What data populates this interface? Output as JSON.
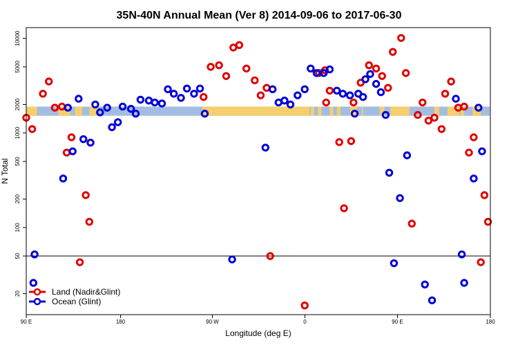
{
  "chart_data": {
    "type": "scatter",
    "title": "35N-40N Annual Mean (Ver 8)   2014-09-06 to 2017-06-30",
    "xlabel": "Longitude (deg E)",
    "ylabel": "N Total",
    "y_scale": "log",
    "ylim": [
      12,
      13000
    ],
    "x_ticks": [
      "90 E",
      "180",
      "90 W",
      "0",
      "90 E",
      "180"
    ],
    "y_ticks": [
      20,
      50,
      100,
      200,
      500,
      1000,
      2000,
      5000,
      10000
    ],
    "reference_line_y": 50,
    "grid": false,
    "legend_position": "bottom-left",
    "colors": {
      "land": "#e00000",
      "ocean": "#0000d8",
      "land_band": "#f5cf6e",
      "ocean_band": "#a3bde0"
    },
    "series": [
      {
        "name": "Land (Nadir&Glint)",
        "points": [
          [
            90,
            1450
          ],
          [
            95,
            1100
          ],
          [
            104,
            2600
          ],
          [
            109,
            3500
          ],
          [
            114,
            1850
          ],
          [
            120,
            1900
          ],
          [
            124,
            620
          ],
          [
            128,
            900
          ],
          [
            135,
            43
          ],
          [
            140,
            220
          ],
          [
            143,
            115
          ],
          [
            239,
            2400
          ],
          [
            245,
            5000
          ],
          [
            252,
            5200
          ],
          [
            258,
            4000
          ],
          [
            264,
            8000
          ],
          [
            269,
            8500
          ],
          [
            275,
            4800
          ],
          [
            282,
            3600
          ],
          [
            287,
            2500
          ],
          [
            292,
            3000
          ],
          [
            295,
            50
          ],
          [
            324,
            15
          ],
          [
            336,
            4300
          ],
          [
            341,
            4600
          ],
          [
            342,
            2100
          ],
          [
            345,
            2800
          ],
          [
            353,
            800
          ],
          [
            357,
            160
          ],
          [
            363,
            820
          ],
          [
            365,
            2100
          ],
          [
            371,
            3400
          ],
          [
            378,
            5200
          ],
          [
            384,
            4800
          ],
          [
            389,
            4000
          ],
          [
            394,
            3000
          ],
          [
            398,
            7200
          ],
          [
            405,
            10100
          ],
          [
            409,
            4300
          ],
          [
            414,
            110
          ],
          [
            419,
            1550
          ],
          [
            423,
            2100
          ],
          [
            428,
            1350
          ],
          [
            433,
            1450
          ],
          [
            439,
            1100
          ],
          [
            442,
            2600
          ],
          [
            447,
            3500
          ],
          [
            453,
            1850
          ],
          [
            458,
            1900
          ],
          [
            462,
            620
          ],
          [
            466,
            900
          ],
          [
            472,
            43
          ],
          [
            475,
            220
          ],
          [
            478,
            115
          ]
        ]
      },
      {
        "name": "Ocean (Glint)",
        "points": [
          [
            96,
            26
          ],
          [
            97,
            52
          ],
          [
            121,
            330
          ],
          [
            125,
            1850
          ],
          [
            129,
            640
          ],
          [
            134,
            2300
          ],
          [
            138,
            860
          ],
          [
            144,
            790
          ],
          [
            148,
            2000
          ],
          [
            152,
            1650
          ],
          [
            158,
            1850
          ],
          [
            162,
            1150
          ],
          [
            167,
            1300
          ],
          [
            171,
            1900
          ],
          [
            178,
            1800
          ],
          [
            182,
            1600
          ],
          [
            186,
            2250
          ],
          [
            193,
            2200
          ],
          [
            198,
            2100
          ],
          [
            204,
            2050
          ],
          [
            209,
            2900
          ],
          [
            214,
            2600
          ],
          [
            220,
            2350
          ],
          [
            225,
            2950
          ],
          [
            231,
            2600
          ],
          [
            236,
            2950
          ],
          [
            240,
            1600
          ],
          [
            263,
            46
          ],
          [
            291,
            700
          ],
          [
            297,
            2900
          ],
          [
            302,
            2100
          ],
          [
            307,
            2200
          ],
          [
            312,
            2000
          ],
          [
            318,
            2500
          ],
          [
            324,
            2900
          ],
          [
            329,
            4800
          ],
          [
            334,
            4300
          ],
          [
            340,
            4300
          ],
          [
            345,
            4700
          ],
          [
            351,
            2800
          ],
          [
            356,
            2600
          ],
          [
            362,
            2500
          ],
          [
            366,
            1600
          ],
          [
            369,
            2600
          ],
          [
            373,
            2400
          ],
          [
            375,
            3700
          ],
          [
            379,
            4200
          ],
          [
            384,
            3300
          ],
          [
            388,
            2700
          ],
          [
            392,
            1550
          ],
          [
            395,
            380
          ],
          [
            399,
            42
          ],
          [
            404,
            205
          ],
          [
            410,
            580
          ],
          [
            425,
            25
          ],
          [
            431,
            17
          ],
          [
            451,
            2300
          ],
          [
            456,
            52
          ],
          [
            458,
            26
          ],
          [
            466,
            330
          ],
          [
            470,
            1850
          ],
          [
            473,
            640
          ]
        ]
      }
    ]
  }
}
